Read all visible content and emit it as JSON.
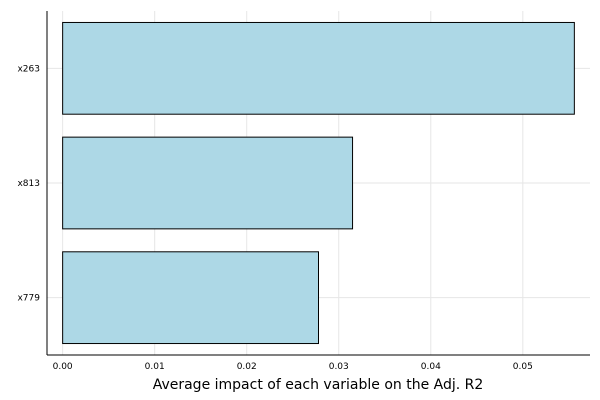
{
  "chart_data": {
    "type": "bar",
    "orientation": "horizontal",
    "categories": [
      "x263",
      "x813",
      "x779"
    ],
    "values": [
      0.0556,
      0.0315,
      0.0278
    ],
    "xlabel": "Average impact of each variable on the Adj. R2",
    "ylabel": "",
    "xlim": [
      -0.0017,
      0.0573
    ],
    "xticks": [
      "0.00",
      "0.01",
      "0.02",
      "0.03",
      "0.04",
      "0.05"
    ],
    "bar_color": "#add8e6",
    "grid": true,
    "legend": false
  }
}
